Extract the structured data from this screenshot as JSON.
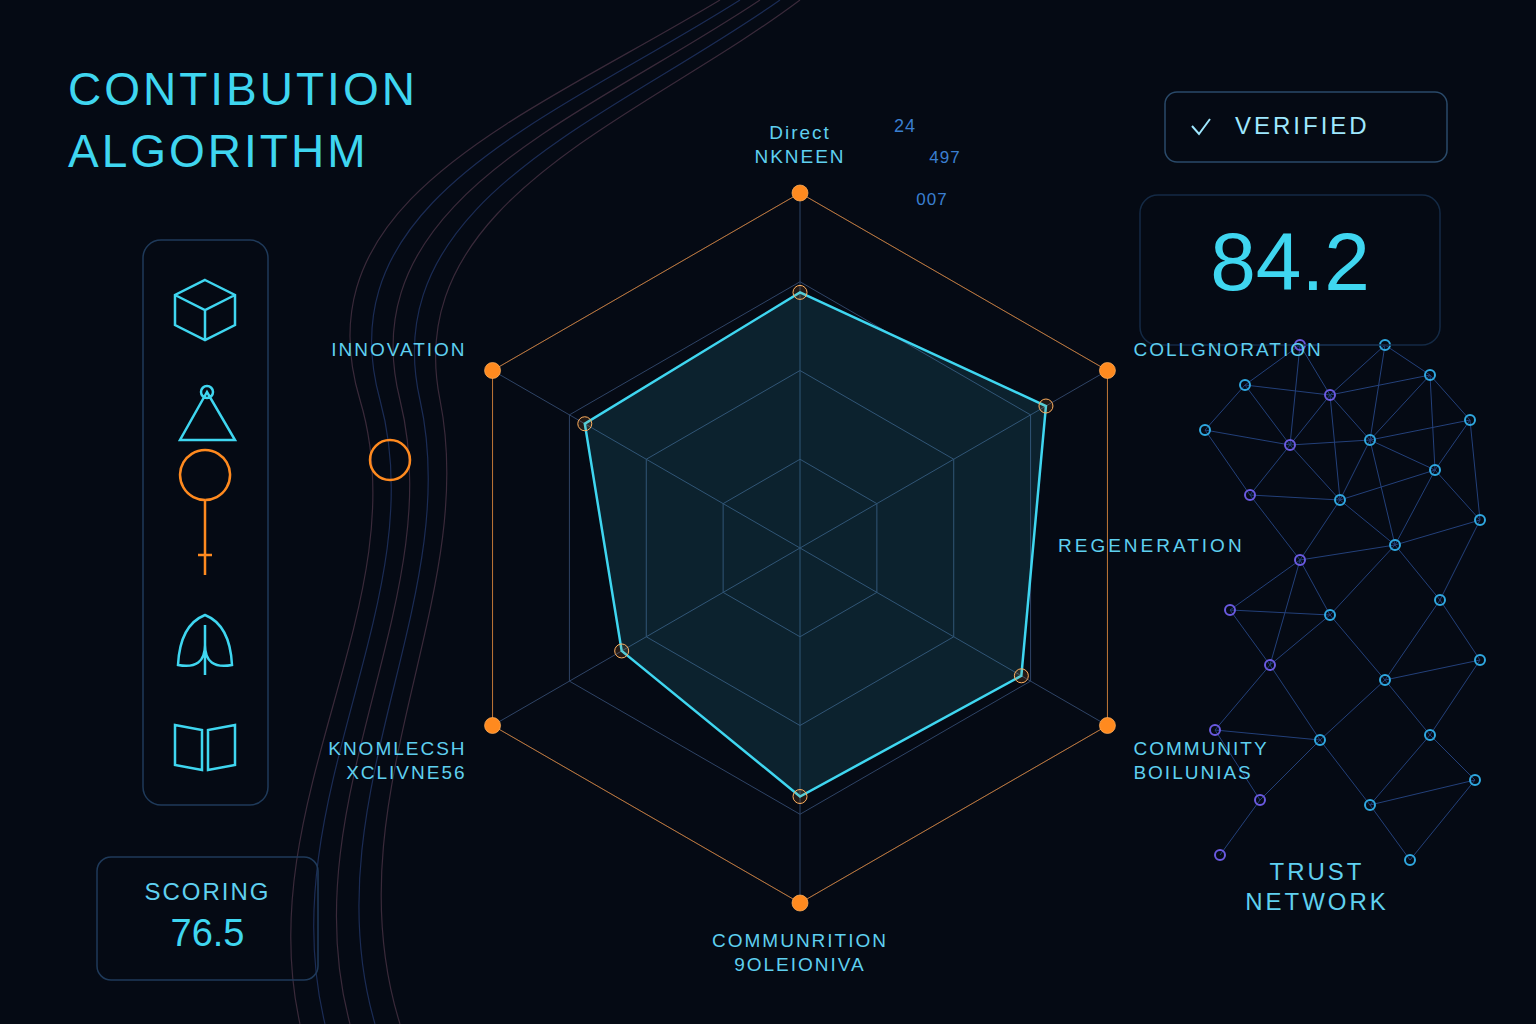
{
  "chart_data": {
    "type": "radar",
    "title": "CONTIBUTION ALGORITHM",
    "categories": [
      "Direct NKNEEN",
      "COLLGNORATION",
      "COMMUNITY BOILUNIAS",
      "COMMUNRITION 9OLEIONIVA",
      "KNOMLECSH XCLIVNE56",
      "INNOVATION"
    ],
    "values": [
      72,
      80,
      72,
      70,
      58,
      70
    ],
    "color": "#3fd6f0",
    "marker": "circle",
    "ylim": [
      0,
      100
    ],
    "yticks": [
      0,
      25,
      50,
      75,
      100
    ],
    "grid": true,
    "tick_labels": false,
    "annotations": [
      "REGENERATION",
      "TRUST NETWORK",
      "24",
      "497",
      "007"
    ],
    "badge": "VERIFIED",
    "score": "84.2",
    "score_box": {
      "label": "SCORING",
      "value": "76.5"
    }
  }
}
